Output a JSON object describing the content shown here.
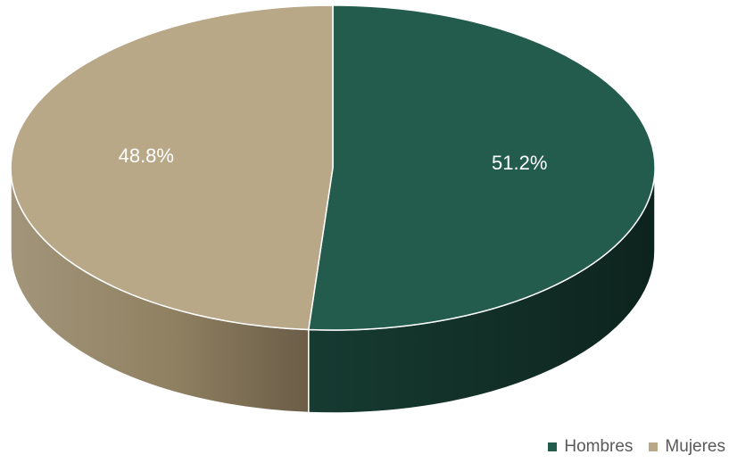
{
  "chart_data": {
    "type": "pie",
    "title": "",
    "categories": [
      "Hombres",
      "Mujeres"
    ],
    "values": [
      51.2,
      48.8
    ],
    "labels": [
      "51.2%",
      "48.8%"
    ],
    "colors": [
      "#235c4d",
      "#b8a888"
    ],
    "legend_position": "bottom-right",
    "style": "3d"
  }
}
